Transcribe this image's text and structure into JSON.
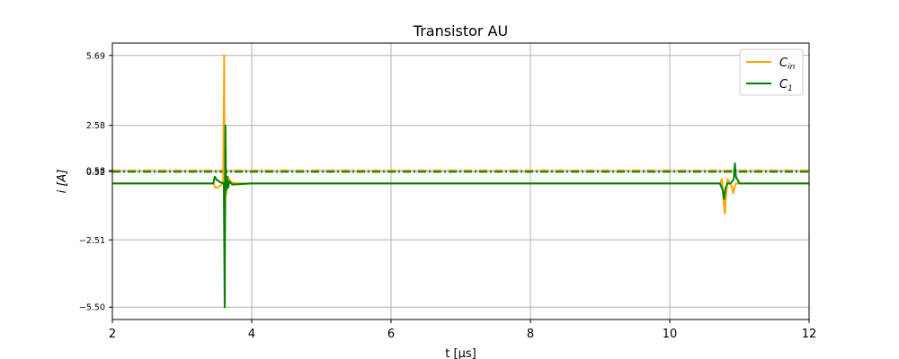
{
  "chart_data": {
    "type": "line",
    "title": "Transistor AU",
    "xlabel": "t [μs]",
    "ylabel": "i [A]",
    "xlim": [
      2,
      12
    ],
    "ylim": [
      -6.05,
      6.24
    ],
    "x_ticks": [
      2,
      4,
      6,
      8,
      10,
      12
    ],
    "x_tick_labels": [
      "2",
      "4",
      "6",
      "8",
      "10",
      "12"
    ],
    "y_ticks": [
      -5.5,
      -2.51,
      0.52,
      0.58,
      2.58,
      5.69
    ],
    "y_tick_labels": [
      "−5.50",
      "−2.51",
      "0.52",
      "0.58",
      "2.58",
      "5.69"
    ],
    "grid": true,
    "legend_position": "top-right",
    "series": [
      {
        "name": "C_in",
        "legend_main": "C",
        "legend_sub": "in",
        "color": "#ffa500",
        "x": [
          2.0,
          3.45,
          3.48,
          3.5,
          3.55,
          3.59,
          3.605,
          3.615,
          3.625,
          3.635,
          3.66,
          3.7,
          3.8,
          4.0,
          6.0,
          8.0,
          10.0,
          10.72,
          10.75,
          10.77,
          10.79,
          10.81,
          10.83,
          10.86,
          10.89,
          10.91,
          10.93,
          10.95,
          11.0,
          12.0
        ],
        "y": [
          0.0,
          0.0,
          -0.2,
          -0.2,
          -0.1,
          0.0,
          5.69,
          -2.51,
          0.0,
          -0.5,
          0.3,
          0.05,
          0.0,
          0.0,
          0.0,
          0.0,
          0.0,
          0.0,
          0.2,
          -0.7,
          -1.35,
          -0.5,
          0.2,
          0.0,
          -0.1,
          -0.45,
          -0.2,
          0.0,
          0.0,
          0.0
        ]
      },
      {
        "name": "C_1",
        "legend_main": "C",
        "legend_sub": "1",
        "color": "#008000",
        "x": [
          2.0,
          3.45,
          3.47,
          3.5,
          3.55,
          3.6,
          3.612,
          3.622,
          3.632,
          3.645,
          3.66,
          3.68,
          3.72,
          4.0,
          6.0,
          8.0,
          10.0,
          10.72,
          10.76,
          10.78,
          10.8,
          10.83,
          10.87,
          10.9,
          10.92,
          10.935,
          10.95,
          11.0,
          12.0
        ],
        "y": [
          0.0,
          0.0,
          0.3,
          0.15,
          0.05,
          0.0,
          -5.5,
          2.58,
          -0.3,
          0.3,
          -0.2,
          0.1,
          -0.05,
          0.0,
          0.0,
          0.0,
          0.0,
          0.0,
          -0.3,
          -0.7,
          -0.2,
          0.0,
          0.0,
          0.1,
          0.2,
          0.9,
          0.3,
          0.0,
          0.0
        ]
      }
    ],
    "reference_lines": [
      {
        "y": 0.58,
        "color": "#ffa500",
        "style": "dash-dot"
      },
      {
        "y": 0.52,
        "color": "#008000",
        "style": "dash-dot"
      }
    ]
  }
}
